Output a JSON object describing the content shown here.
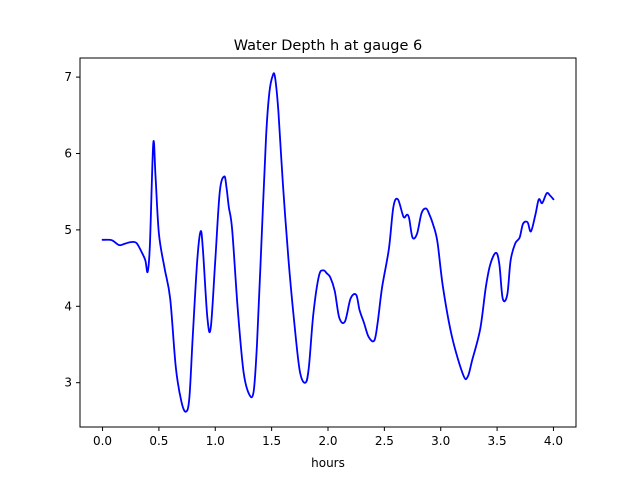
{
  "chart_data": {
    "type": "line",
    "title": "Water Depth h at gauge 6",
    "xlabel": "hours",
    "ylabel": "",
    "xlim": [
      -0.2,
      4.2
    ],
    "ylim": [
      2.42,
      7.25
    ],
    "xticks": [
      0.0,
      0.5,
      1.0,
      1.5,
      2.0,
      2.5,
      3.0,
      3.5,
      4.0
    ],
    "xtick_labels": [
      "0.0",
      "0.5",
      "1.0",
      "1.5",
      "2.0",
      "2.5",
      "3.0",
      "3.5",
      "4.0"
    ],
    "yticks": [
      3,
      4,
      5,
      6,
      7
    ],
    "ytick_labels": [
      "3",
      "4",
      "5",
      "6",
      "7"
    ],
    "grid": false,
    "series": [
      {
        "color": "#0000ff",
        "x": [
          0.0,
          0.07,
          0.1,
          0.15,
          0.2,
          0.25,
          0.3,
          0.35,
          0.38,
          0.4,
          0.42,
          0.45,
          0.47,
          0.5,
          0.55,
          0.6,
          0.65,
          0.7,
          0.74,
          0.77,
          0.8,
          0.84,
          0.87,
          0.89,
          0.93,
          0.96,
          1.0,
          1.04,
          1.08,
          1.1,
          1.12,
          1.15,
          1.2,
          1.25,
          1.3,
          1.34,
          1.37,
          1.4,
          1.45,
          1.48,
          1.51,
          1.53,
          1.56,
          1.6,
          1.65,
          1.7,
          1.75,
          1.8,
          1.83,
          1.87,
          1.92,
          1.96,
          1.99,
          2.02,
          2.06,
          2.1,
          2.15,
          2.2,
          2.25,
          2.28,
          2.32,
          2.36,
          2.41,
          2.44,
          2.48,
          2.54,
          2.58,
          2.62,
          2.67,
          2.7,
          2.72,
          2.75,
          2.79,
          2.83,
          2.87,
          2.9,
          2.93,
          2.97,
          3.02,
          3.1,
          3.2,
          3.24,
          3.28,
          3.35,
          3.4,
          3.44,
          3.49,
          3.52,
          3.55,
          3.59,
          3.62,
          3.66,
          3.7,
          3.73,
          3.77,
          3.8,
          3.84,
          3.87,
          3.9,
          3.94,
          3.97,
          4.0
        ],
        "y": [
          4.87,
          4.87,
          4.85,
          4.8,
          4.82,
          4.84,
          4.83,
          4.7,
          4.6,
          4.45,
          4.8,
          6.13,
          5.7,
          4.95,
          4.5,
          4.1,
          3.2,
          2.75,
          2.62,
          2.8,
          3.6,
          4.6,
          4.98,
          4.75,
          3.85,
          3.72,
          4.6,
          5.5,
          5.7,
          5.55,
          5.3,
          5.0,
          3.95,
          3.15,
          2.85,
          2.88,
          3.5,
          4.5,
          6.2,
          6.8,
          7.02,
          7.0,
          6.55,
          5.6,
          4.6,
          3.8,
          3.15,
          3.0,
          3.2,
          3.9,
          4.4,
          4.47,
          4.43,
          4.38,
          4.2,
          3.85,
          3.8,
          4.1,
          4.15,
          3.95,
          3.78,
          3.6,
          3.55,
          3.78,
          4.25,
          4.75,
          5.3,
          5.4,
          5.17,
          5.2,
          5.15,
          4.9,
          4.95,
          5.22,
          5.28,
          5.2,
          5.08,
          4.85,
          4.25,
          3.6,
          3.1,
          3.08,
          3.3,
          3.7,
          4.25,
          4.55,
          4.7,
          4.55,
          4.1,
          4.15,
          4.6,
          4.82,
          4.9,
          5.08,
          5.1,
          4.98,
          5.2,
          5.4,
          5.35,
          5.48,
          5.45,
          5.4
        ]
      }
    ]
  }
}
